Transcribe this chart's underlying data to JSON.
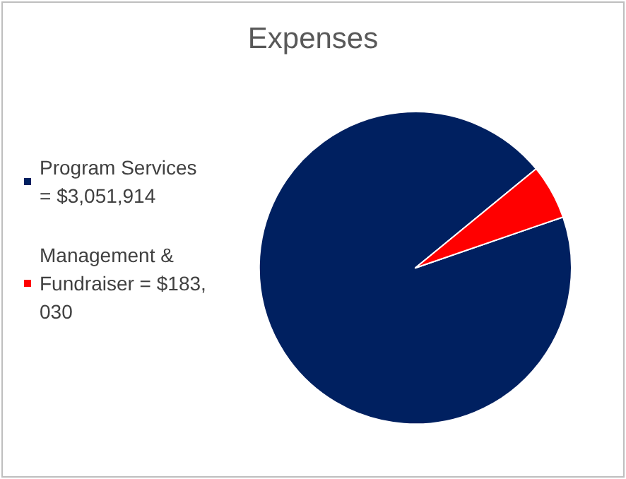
{
  "chart_data": {
    "type": "pie",
    "title": "Expenses",
    "categories": [
      "Program Services = $3,051,914",
      "Management & Fundraiser = $183,030"
    ],
    "values": [
      3051914,
      183030
    ],
    "colors": [
      "#002060",
      "#ff0000"
    ],
    "legend": "left"
  }
}
